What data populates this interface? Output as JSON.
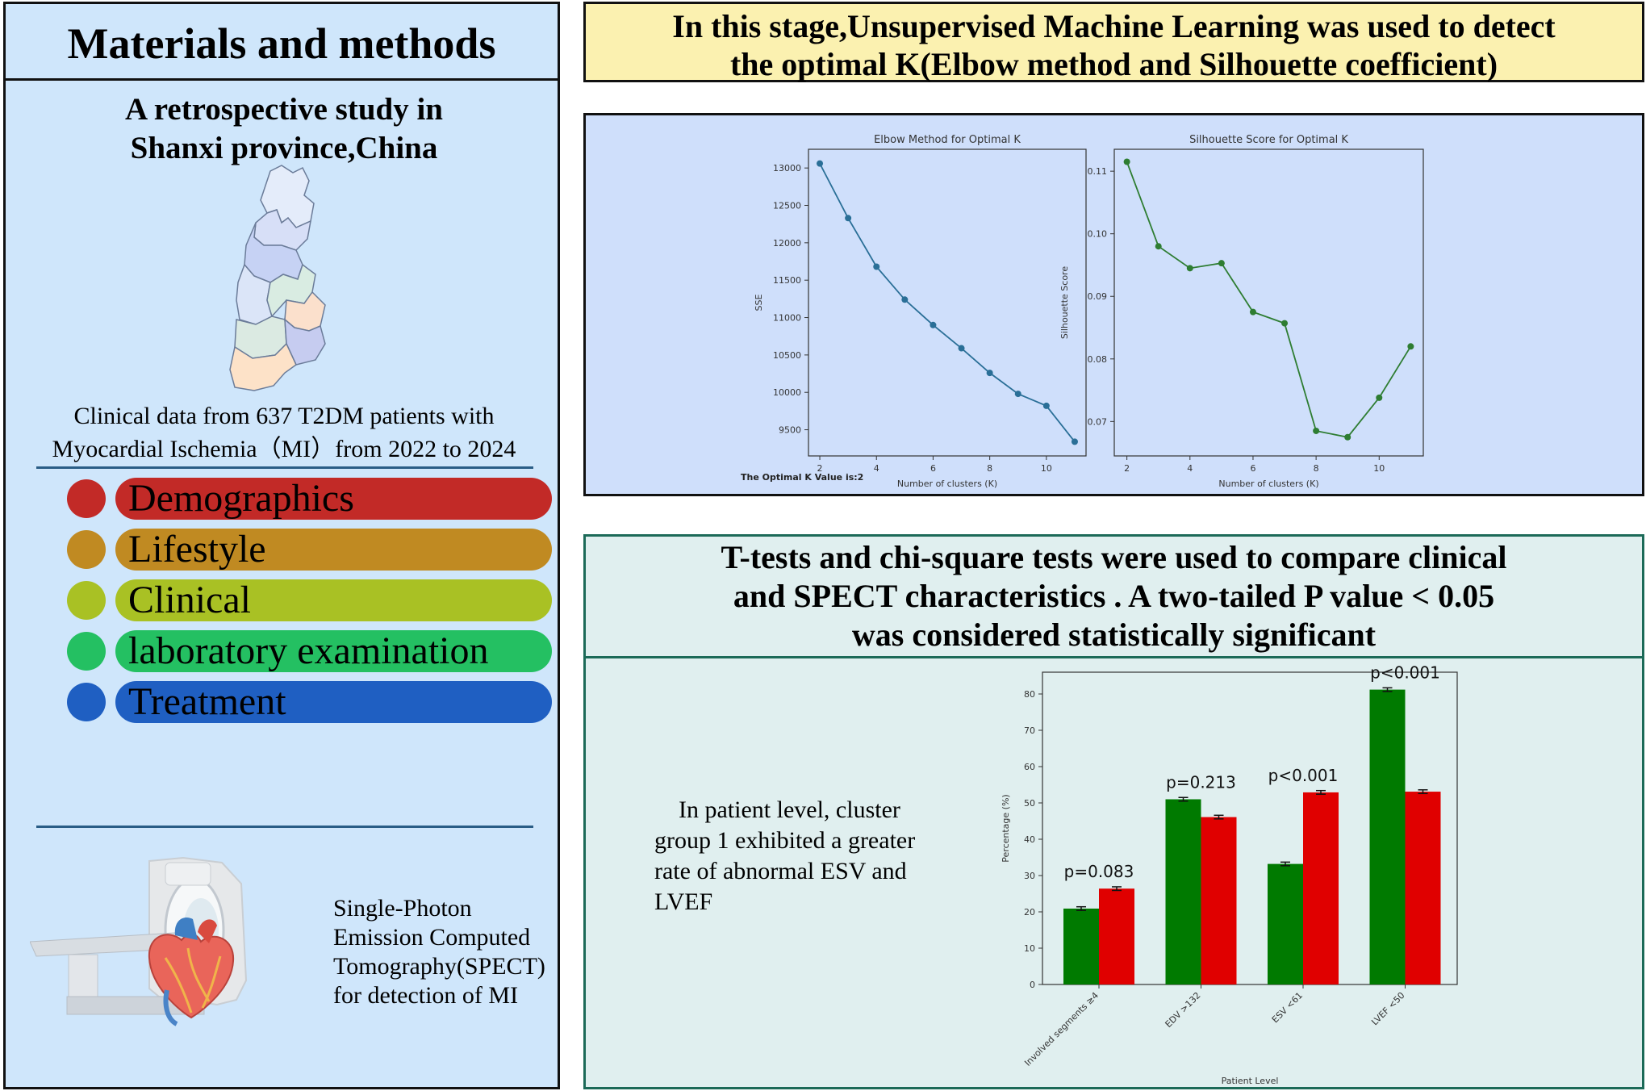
{
  "left": {
    "title": "Materials and methods",
    "study_line1": "A retrospective study in",
    "study_line2": "Shanxi province,China",
    "clinical_line1": "Clinical data from 637 T2DM patients with",
    "clinical_line2": "Myocardial Ischemia（MI）from 2022 to 2024",
    "categories": [
      {
        "label": "Demographics",
        "color": "#c22a27"
      },
      {
        "label": "Lifestyle",
        "color": "#c08a22"
      },
      {
        "label": "Clinical",
        "color": "#a9c124"
      },
      {
        "label": "laboratory examination",
        "color": "#24c062"
      },
      {
        "label": "Treatment",
        "color": "#1f5fc2"
      }
    ],
    "spect_lines": [
      "Single-Photon",
      "Emission Computed",
      "Tomography(SPECT)",
      "for detection of MI"
    ]
  },
  "stage": {
    "line1": "In this stage,Unsupervised Machine Learning was used to detect",
    "line2": "the optimal K(Elbow method and Silhouette coefficient)"
  },
  "optimal_k_text": "The Optimal K Value is:2",
  "tests": {
    "line1": "T-tests and chi-square tests were used to compare clinical",
    "line2": "and SPECT characteristics . A two-tailed P value < 0.05",
    "line3": "was considered statistically significant"
  },
  "patient_text_lines": [
    "In patient level, cluster",
    "group 1 exhibited a greater",
    "rate of abnormal ESV and",
    "LVEF"
  ],
  "chart_data": [
    {
      "type": "line",
      "title": "Elbow Method for Optimal K",
      "xlabel": "Number of clusters (K)",
      "ylabel": "SSE",
      "x": [
        2,
        3,
        4,
        5,
        6,
        7,
        8,
        9,
        10,
        11
      ],
      "y": [
        13060,
        12330,
        11680,
        11240,
        10900,
        10590,
        10260,
        9980,
        9820,
        9340
      ],
      "xticks": [
        2,
        4,
        6,
        8,
        10
      ],
      "yticks": [
        9500,
        10000,
        10500,
        11000,
        11500,
        12000,
        12500,
        13000
      ],
      "xlim": [
        1.6,
        11.4
      ],
      "ylim": [
        9150,
        13250
      ],
      "color": "#2a6f97",
      "grid": false
    },
    {
      "type": "line",
      "title": "Silhouette Score for Optimal K",
      "xlabel": "Number of clusters (K)",
      "ylabel": "Silhouette Score",
      "x": [
        2,
        3,
        4,
        5,
        6,
        7,
        8,
        9,
        10,
        11
      ],
      "y": [
        0.1115,
        0.098,
        0.0945,
        0.0953,
        0.0875,
        0.0857,
        0.0685,
        0.0675,
        0.0738,
        0.082
      ],
      "xticks": [
        2,
        4,
        6,
        8,
        10
      ],
      "yticks": [
        0.07,
        0.08,
        0.09,
        0.1,
        0.11
      ],
      "xlim": [
        1.6,
        11.4
      ],
      "ylim": [
        0.0645,
        0.1135
      ],
      "color": "#2e7d32",
      "grid": false
    },
    {
      "type": "bar",
      "xlabel": "Patient Level",
      "ylabel": "Percentage (%)",
      "categories": [
        "Involved segments ≥4",
        "EDV >132",
        "ESV <61",
        "LVEF <50"
      ],
      "series": [
        {
          "values": [
            20.9,
            51.0,
            33.2,
            81.2
          ],
          "errors": [
            0.5,
            0.5,
            0.5,
            0.5
          ],
          "color": "#007a00"
        },
        {
          "values": [
            26.4,
            46.1,
            52.9,
            53.1
          ],
          "errors": [
            0.5,
            0.5,
            0.5,
            0.5
          ],
          "color": "#e00000"
        }
      ],
      "annotations": [
        "p=0.083",
        "p=0.213",
        "p<0.001",
        "p<0.001"
      ],
      "yticks": [
        0,
        10,
        20,
        30,
        40,
        50,
        60,
        70,
        80
      ],
      "ylim": [
        0,
        86
      ],
      "grid": false
    }
  ]
}
